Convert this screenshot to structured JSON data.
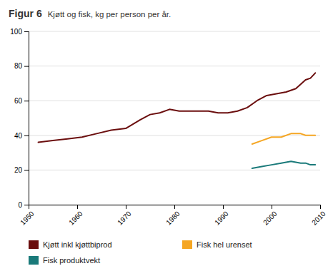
{
  "chart_data": {
    "type": "line",
    "title": "Figur 6",
    "subtitle": "Kjøtt og fisk, kg per person per år.",
    "xlim": [
      1950,
      2010
    ],
    "ylim": [
      0,
      100
    ],
    "xticks": [
      1950,
      1960,
      1970,
      1980,
      1990,
      2000,
      2010
    ],
    "yticks": [
      0,
      20,
      40,
      60,
      80,
      100
    ],
    "grid": true,
    "legend": "bottom",
    "series": [
      {
        "name": "Kjøtt inkl kjøttbiprod",
        "color": "#6b0e0e",
        "x": [
          1952,
          1955,
          1958,
          1961,
          1964,
          1967,
          1970,
          1973,
          1975,
          1977,
          1979,
          1981,
          1983,
          1985,
          1987,
          1989,
          1991,
          1993,
          1995,
          1997,
          1999,
          2001,
          2003,
          2005,
          2007,
          2008,
          2009
        ],
        "values": [
          36,
          37,
          38,
          39,
          41,
          43,
          44,
          49,
          52,
          53,
          55,
          54,
          54,
          54,
          54,
          53,
          53,
          54,
          56,
          60,
          63,
          64,
          65,
          67,
          72,
          73,
          76
        ]
      },
      {
        "name": "Fisk hel urenset",
        "color": "#f5a623",
        "x": [
          1996,
          1998,
          2000,
          2002,
          2004,
          2006,
          2007,
          2008,
          2009
        ],
        "values": [
          35,
          37,
          39,
          39,
          41,
          41,
          40,
          40,
          40
        ]
      },
      {
        "name": "Fisk produktvekt",
        "color": "#1a7a7a",
        "x": [
          1996,
          1998,
          2000,
          2002,
          2004,
          2006,
          2007,
          2008,
          2009
        ],
        "values": [
          21,
          22,
          23,
          24,
          25,
          24,
          24,
          23,
          23
        ]
      }
    ]
  }
}
